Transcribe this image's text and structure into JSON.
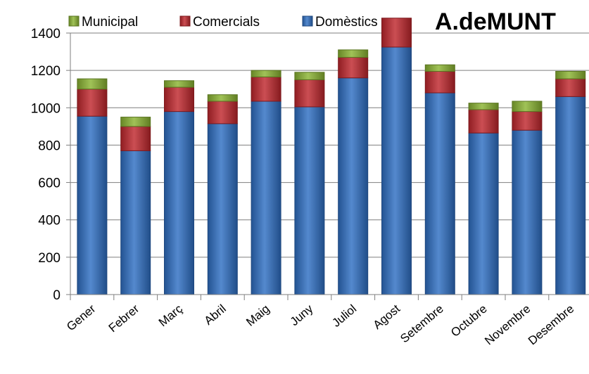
{
  "chart_data": {
    "type": "bar",
    "stacked": true,
    "title": "A.deMUNT",
    "xlabel": "",
    "ylabel": "",
    "ylim": [
      0,
      1400
    ],
    "yticks": [
      0,
      200,
      400,
      600,
      800,
      1000,
      1200,
      1400
    ],
    "grid": true,
    "legend_position": "top",
    "categories": [
      "Gener",
      "Febrer",
      "Març",
      "Abril",
      "Maig",
      "Juny",
      "Juliol",
      "Agost",
      "Setembre",
      "Octubre",
      "Novembre",
      "Desembre"
    ],
    "series": [
      {
        "name": "Domèstics",
        "color": "#2F6FC3",
        "values": [
          955,
          770,
          980,
          915,
          1035,
          1005,
          1160,
          1325,
          1080,
          865,
          880,
          1060
        ]
      },
      {
        "name": "Comercials",
        "color": "#C0272D",
        "values": [
          145,
          130,
          130,
          120,
          130,
          145,
          110,
          155,
          115,
          125,
          100,
          95
        ]
      },
      {
        "name": "Municipal",
        "color": "#8BB432",
        "values": [
          55,
          50,
          35,
          35,
          35,
          40,
          40,
          0,
          35,
          35,
          55,
          40
        ]
      }
    ],
    "legend_order": [
      "Municipal",
      "Comercials",
      "Domèstics"
    ]
  }
}
